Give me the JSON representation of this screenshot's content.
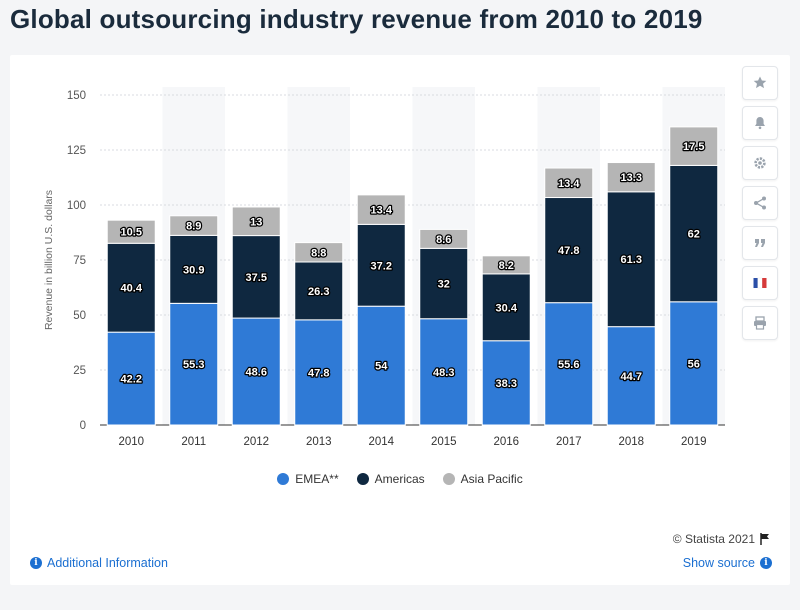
{
  "page": {
    "title": "Global outsourcing industry revenue from 2010 to 2019",
    "credit": "© Statista 2021",
    "additional_info": "Additional Information",
    "show_source": "Show source"
  },
  "tools": [
    {
      "name": "star-icon"
    },
    {
      "name": "bell-icon"
    },
    {
      "name": "gear-icon"
    },
    {
      "name": "share-icon"
    },
    {
      "name": "quote-icon"
    },
    {
      "name": "flag-france-icon"
    },
    {
      "name": "print-icon"
    }
  ],
  "colors": {
    "emea": "#2f7ad6",
    "americas": "#0f2840",
    "asia": "#b5b5b5",
    "link": "#1b6fd1"
  },
  "chart_data": {
    "type": "bar",
    "stacked": true,
    "title": "Global outsourcing industry revenue from 2010 to 2019",
    "xlabel": "",
    "ylabel": "Revenue in billion U.S. dollars",
    "ylim": [
      0,
      150
    ],
    "yticks": [
      0,
      25,
      50,
      75,
      100,
      125,
      150
    ],
    "grid": true,
    "legend_position": "bottom",
    "categories": [
      "2010",
      "2011",
      "2012",
      "2013",
      "2014",
      "2015",
      "2016",
      "2017",
      "2018",
      "2019"
    ],
    "series": [
      {
        "name": "EMEA**",
        "color": "#2f7ad6",
        "values": [
          42.2,
          55.3,
          48.6,
          47.8,
          54,
          48.3,
          38.3,
          55.6,
          44.7,
          56
        ]
      },
      {
        "name": "Americas",
        "color": "#0f2840",
        "values": [
          40.4,
          30.9,
          37.5,
          26.3,
          37.2,
          32,
          30.4,
          47.8,
          61.3,
          62
        ]
      },
      {
        "name": "Asia Pacific",
        "color": "#b5b5b5",
        "values": [
          10.5,
          8.9,
          13,
          8.8,
          13.4,
          8.6,
          8.2,
          13.4,
          13.3,
          17.5
        ]
      }
    ]
  }
}
